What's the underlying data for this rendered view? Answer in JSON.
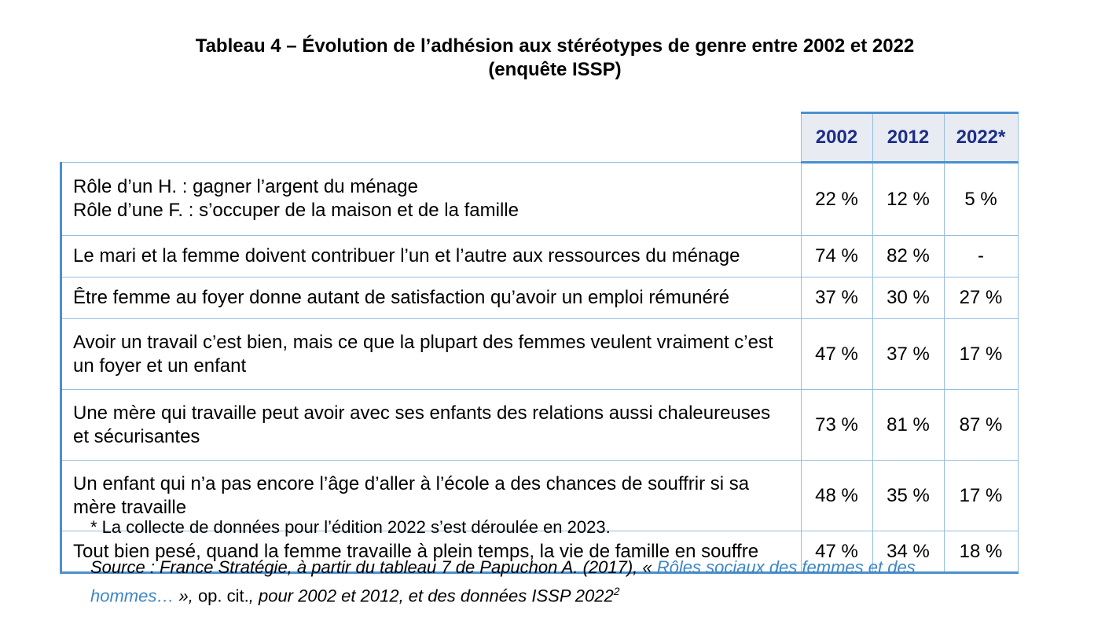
{
  "title": {
    "line1": "Tableau 4 – Évolution de l’adhésion aux stéréotypes de genre entre 2002 et 2022",
    "line2": "(enquête ISSP)"
  },
  "table": {
    "columns": [
      "2002",
      "2012",
      "2022*"
    ],
    "rows": [
      {
        "lines": [
          "Rôle d’un H. : gagner l’argent du ménage",
          "Rôle d’une F. : s’occuper de la maison et de la famille"
        ],
        "values": [
          "22 %",
          "12 %",
          "5 %"
        ]
      },
      {
        "lines": [
          "Le mari et la femme doivent contribuer l’un et l’autre aux ressources du ménage"
        ],
        "values": [
          "74 %",
          "82 %",
          "-"
        ]
      },
      {
        "lines": [
          "Être femme au foyer donne autant de satisfaction qu’avoir un emploi rémunéré"
        ],
        "values": [
          "37 %",
          "30 %",
          "27 %"
        ]
      },
      {
        "lines": [
          "Avoir un travail c’est bien, mais ce que la plupart des femmes veulent vraiment c’est",
          "un foyer et un enfant"
        ],
        "values": [
          "47 %",
          "37 %",
          "17 %"
        ]
      },
      {
        "lines": [
          "Une mère qui travaille peut avoir avec ses enfants des relations aussi chaleureuses",
          "et sécurisantes"
        ],
        "values": [
          "73 %",
          "81 %",
          "87 %"
        ]
      },
      {
        "lines": [
          "Un enfant qui n’a pas encore l’âge d’aller à l’école a des chances de souffrir si sa",
          "mère travaille"
        ],
        "values": [
          "48 %",
          "35 %",
          "17 %"
        ]
      },
      {
        "lines": [
          "Tout bien pesé, quand la femme travaille à plein temps, la vie de famille en souffre"
        ],
        "values": [
          "47 %",
          "34 %",
          "18 %"
        ]
      }
    ]
  },
  "footnote": "* La collecte de données pour l’édition 2022 s’est déroulée en 2023.",
  "source": {
    "prefix": "Source : France Stratégie, à partir du tableau 7 de Papuchon A. (2017), « ",
    "link_line1": "Rôles sociaux des femmes et des",
    "link_line2": "hommes…",
    "middle1": " », ",
    "opcit": "op. cit.",
    "middle2": ", pour 2002 et 2012, et des données ISSP 2022",
    "sup": "2"
  },
  "colors": {
    "header_text": "#1d2e86",
    "header_bg": "#e8ebf2",
    "border": "#4a90cf",
    "link": "#3d86c6"
  }
}
